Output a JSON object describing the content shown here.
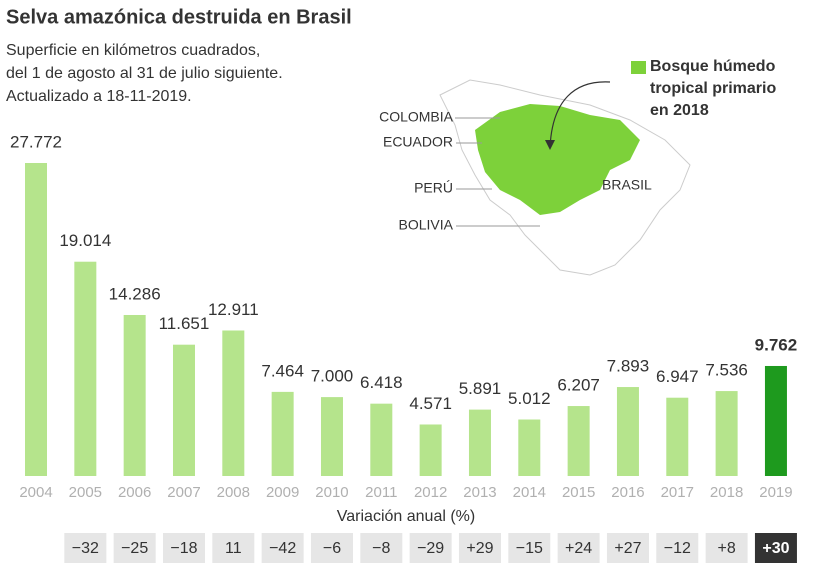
{
  "chart_data": {
    "type": "bar",
    "title": "Selva amazónica destruida en Brasil",
    "subtitle": [
      "Superficie en kilómetros cuadrados,",
      "del 1 de agosto al 31 de julio siguiente.",
      "Actualizado a 18-11-2019."
    ],
    "categories": [
      "2004",
      "2005",
      "2006",
      "2007",
      "2008",
      "2009",
      "2010",
      "2011",
      "2012",
      "2013",
      "2014",
      "2015",
      "2016",
      "2017",
      "2018",
      "2019"
    ],
    "values": [
      27772,
      19014,
      14286,
      11651,
      12911,
      7464,
      7000,
      6418,
      4571,
      5891,
      5012,
      6207,
      7893,
      6947,
      7536,
      9762
    ],
    "value_labels": [
      "27.772",
      "19.014",
      "14.286",
      "11.651",
      "12.911",
      "7.464",
      "7.000",
      "6.418",
      "4.571",
      "5.891",
      "5.012",
      "6.207",
      "7.893",
      "6.947",
      "7.536",
      "9.762"
    ],
    "colors": [
      "#b5e48c",
      "#b5e48c",
      "#b5e48c",
      "#b5e48c",
      "#b5e48c",
      "#b5e48c",
      "#b5e48c",
      "#b5e48c",
      "#b5e48c",
      "#b5e48c",
      "#b5e48c",
      "#b5e48c",
      "#b5e48c",
      "#b5e48c",
      "#b5e48c",
      "#1e9a1e"
    ],
    "annual_change": {
      "title": "Variación anual (%)",
      "values": [
        -32,
        -25,
        -18,
        11,
        -42,
        -6,
        -8,
        -29,
        29,
        -15,
        24,
        27,
        -12,
        8,
        30
      ],
      "value_labels": [
        "−32",
        "−25",
        "−18",
        "11",
        "−42",
        "−6",
        "−8",
        "−29",
        "+29",
        "−15",
        "+24",
        "+27",
        "−12",
        "+8",
        "+30"
      ]
    },
    "map": {
      "labels": [
        "COLOMBIA",
        "ECUADOR",
        "PERÚ",
        "BOLIVIA",
        "BRASIL"
      ],
      "legend": [
        "Bosque húmedo",
        "tropical primario",
        "en 2018"
      ],
      "legend_color": "#7dd13a"
    }
  }
}
